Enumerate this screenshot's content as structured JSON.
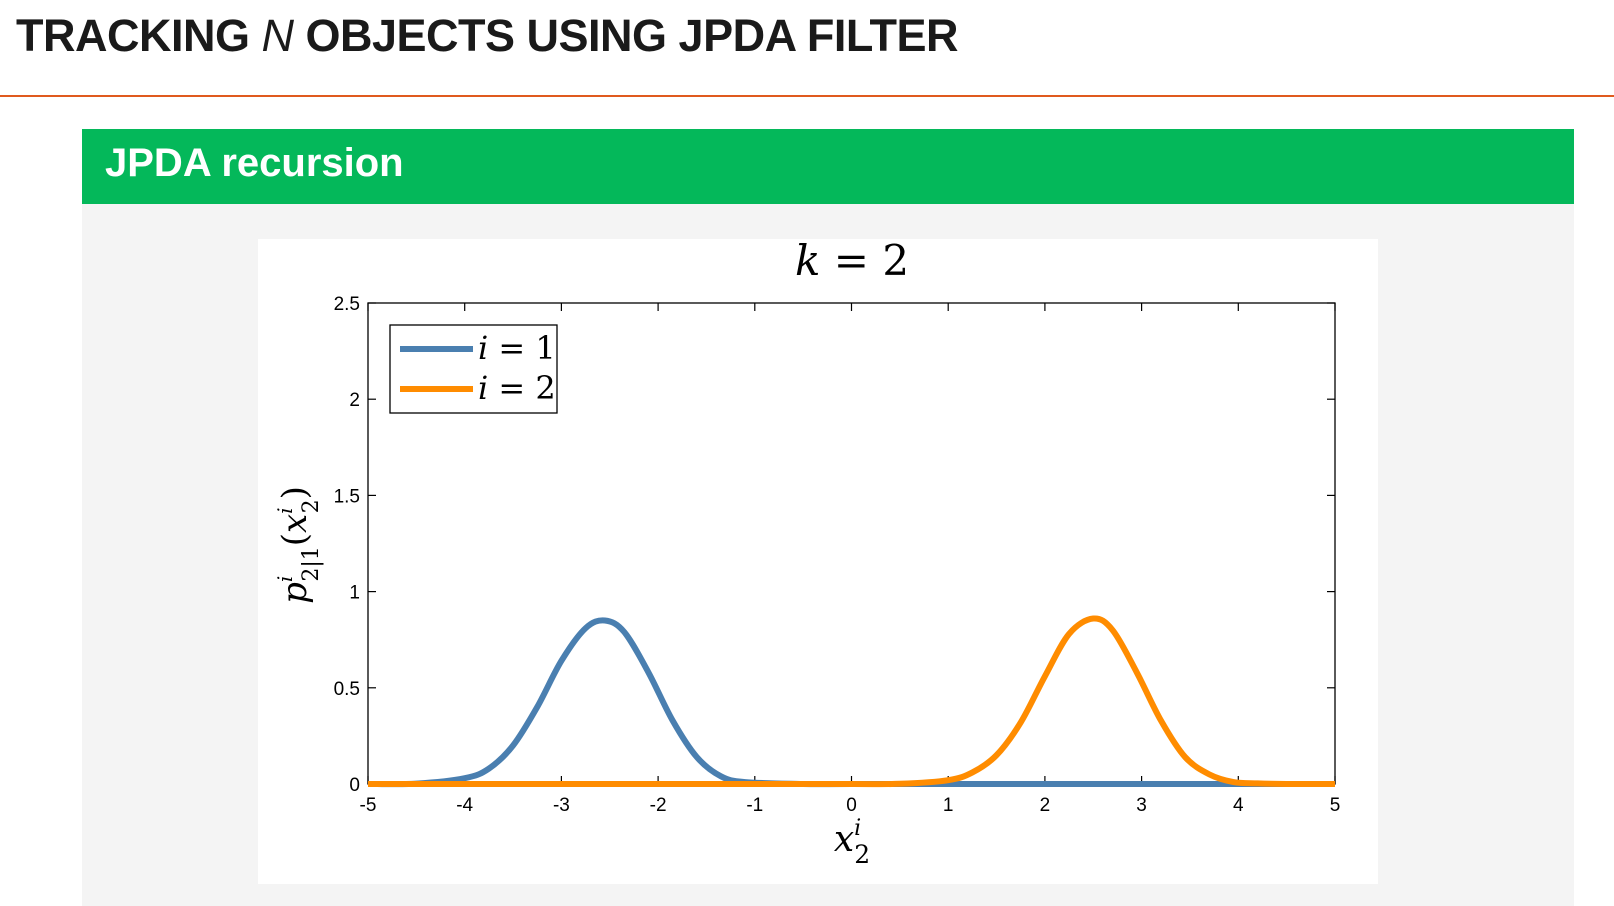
{
  "slide": {
    "title_before": "TRACKING ",
    "title_em": "N",
    "title_after": " OBJECTS USING JPDA FILTER"
  },
  "block": {
    "title": "JPDA recursion"
  },
  "chart_data": {
    "type": "line",
    "title_var": "k",
    "title_eq": " = ",
    "title_val": "2",
    "xlabel_base": "x",
    "xlabel_sup": "i",
    "xlabel_sub": "2",
    "ylabel": "p_{2|1}^i(x_2^i)",
    "xlim": [
      -5,
      5
    ],
    "ylim": [
      0,
      2.5
    ],
    "xticks": [
      -5,
      -4,
      -3,
      -2,
      -1,
      0,
      1,
      2,
      3,
      4,
      5
    ],
    "xtick_labels": [
      "-5",
      "-4",
      "-3",
      "-2",
      "-1",
      "0",
      "1",
      "2",
      "3",
      "4",
      "5"
    ],
    "yticks": [
      0,
      0.5,
      1,
      1.5,
      2,
      2.5
    ],
    "ytick_labels": [
      "0",
      "0.5",
      "1",
      "1.5",
      "2",
      "2.5"
    ],
    "legend_position": "top-left",
    "grid": false,
    "series": [
      {
        "name": "i = 1",
        "legend_var": "i",
        "legend_eq": " = ",
        "legend_val": "1",
        "color": "#4a7fb0",
        "x": [
          -5,
          -4.5,
          -4,
          -3.75,
          -3.5,
          -3.25,
          -3,
          -2.75,
          -2.55,
          -2.35,
          -2.1,
          -1.85,
          -1.6,
          -1.35,
          -1.1,
          -0.5,
          0,
          1,
          2,
          3,
          4,
          5
        ],
        "y": [
          0,
          0.002,
          0.03,
          0.08,
          0.2,
          0.4,
          0.64,
          0.81,
          0.85,
          0.79,
          0.58,
          0.33,
          0.14,
          0.04,
          0.01,
          0,
          0,
          0,
          0,
          0,
          0,
          0
        ]
      },
      {
        "name": "i = 2",
        "legend_var": "i",
        "legend_eq": " = ",
        "legend_val": "2",
        "color": "#ff8c00",
        "x": [
          -5,
          -4,
          -3,
          -2,
          -1,
          0,
          0.5,
          1,
          1.25,
          1.5,
          1.75,
          2,
          2.25,
          2.5,
          2.7,
          2.95,
          3.2,
          3.45,
          3.7,
          3.95,
          4.2,
          4.5,
          5
        ],
        "y": [
          0,
          0,
          0,
          0,
          0,
          0,
          0.001,
          0.02,
          0.06,
          0.15,
          0.32,
          0.56,
          0.78,
          0.86,
          0.8,
          0.58,
          0.33,
          0.14,
          0.05,
          0.01,
          0.003,
          0,
          0
        ]
      }
    ]
  }
}
